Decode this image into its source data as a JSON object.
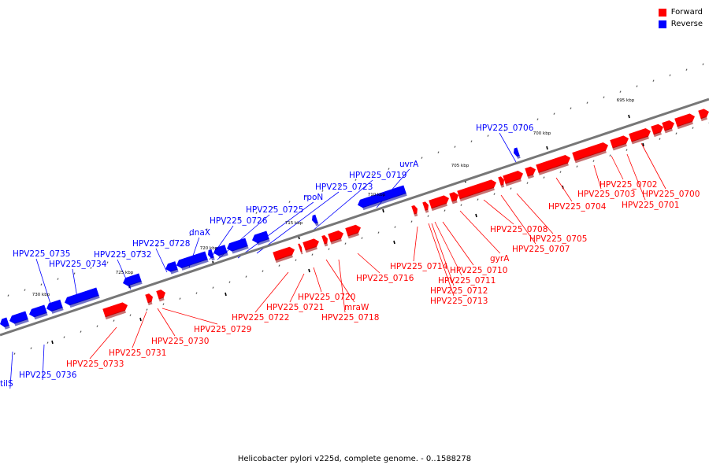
{
  "legend": {
    "forward_label": "Forward",
    "reverse_label": "Reverse",
    "forward_color": "#ff0000",
    "reverse_color": "#0000ff"
  },
  "caption": "Helicobacter pylori v225d, complete genome. - 0..1588278",
  "axis": {
    "ticks": [
      "730 kbp",
      "725 kbp",
      "720 kbp",
      "715 kbp",
      "710 kbp",
      "705 kbp",
      "700 kbp",
      "695 kbp"
    ]
  },
  "genes": {
    "reverse": [
      "tilS",
      "HPV225_0736",
      "HPV225_0735",
      "HPV225_0734",
      "HPV225_0732",
      "HPV225_0728",
      "dnaX",
      "HPV225_0726",
      "HPV225_0725",
      "rpoN",
      "HPV225_0723",
      "HPV225_0719",
      "uvrA",
      "HPV225_0706"
    ],
    "forward": [
      "HPV225_0733",
      "HPV225_0731",
      "HPV225_0730",
      "HPV225_0729",
      "HPV225_0722",
      "HPV225_0721",
      "HPV225_0720",
      "mraW",
      "HPV225_0718",
      "HPV225_0716",
      "HPV225_0714",
      "HPV225_0713",
      "HPV225_0712",
      "HPV225_0711",
      "HPV225_0710",
      "gyrA",
      "HPV225_0708",
      "HPV225_0707",
      "HPV225_0705",
      "HPV225_0704",
      "HPV225_0703",
      "HPV225_0702",
      "HPV225_0701",
      "HPV225_0700"
    ]
  }
}
